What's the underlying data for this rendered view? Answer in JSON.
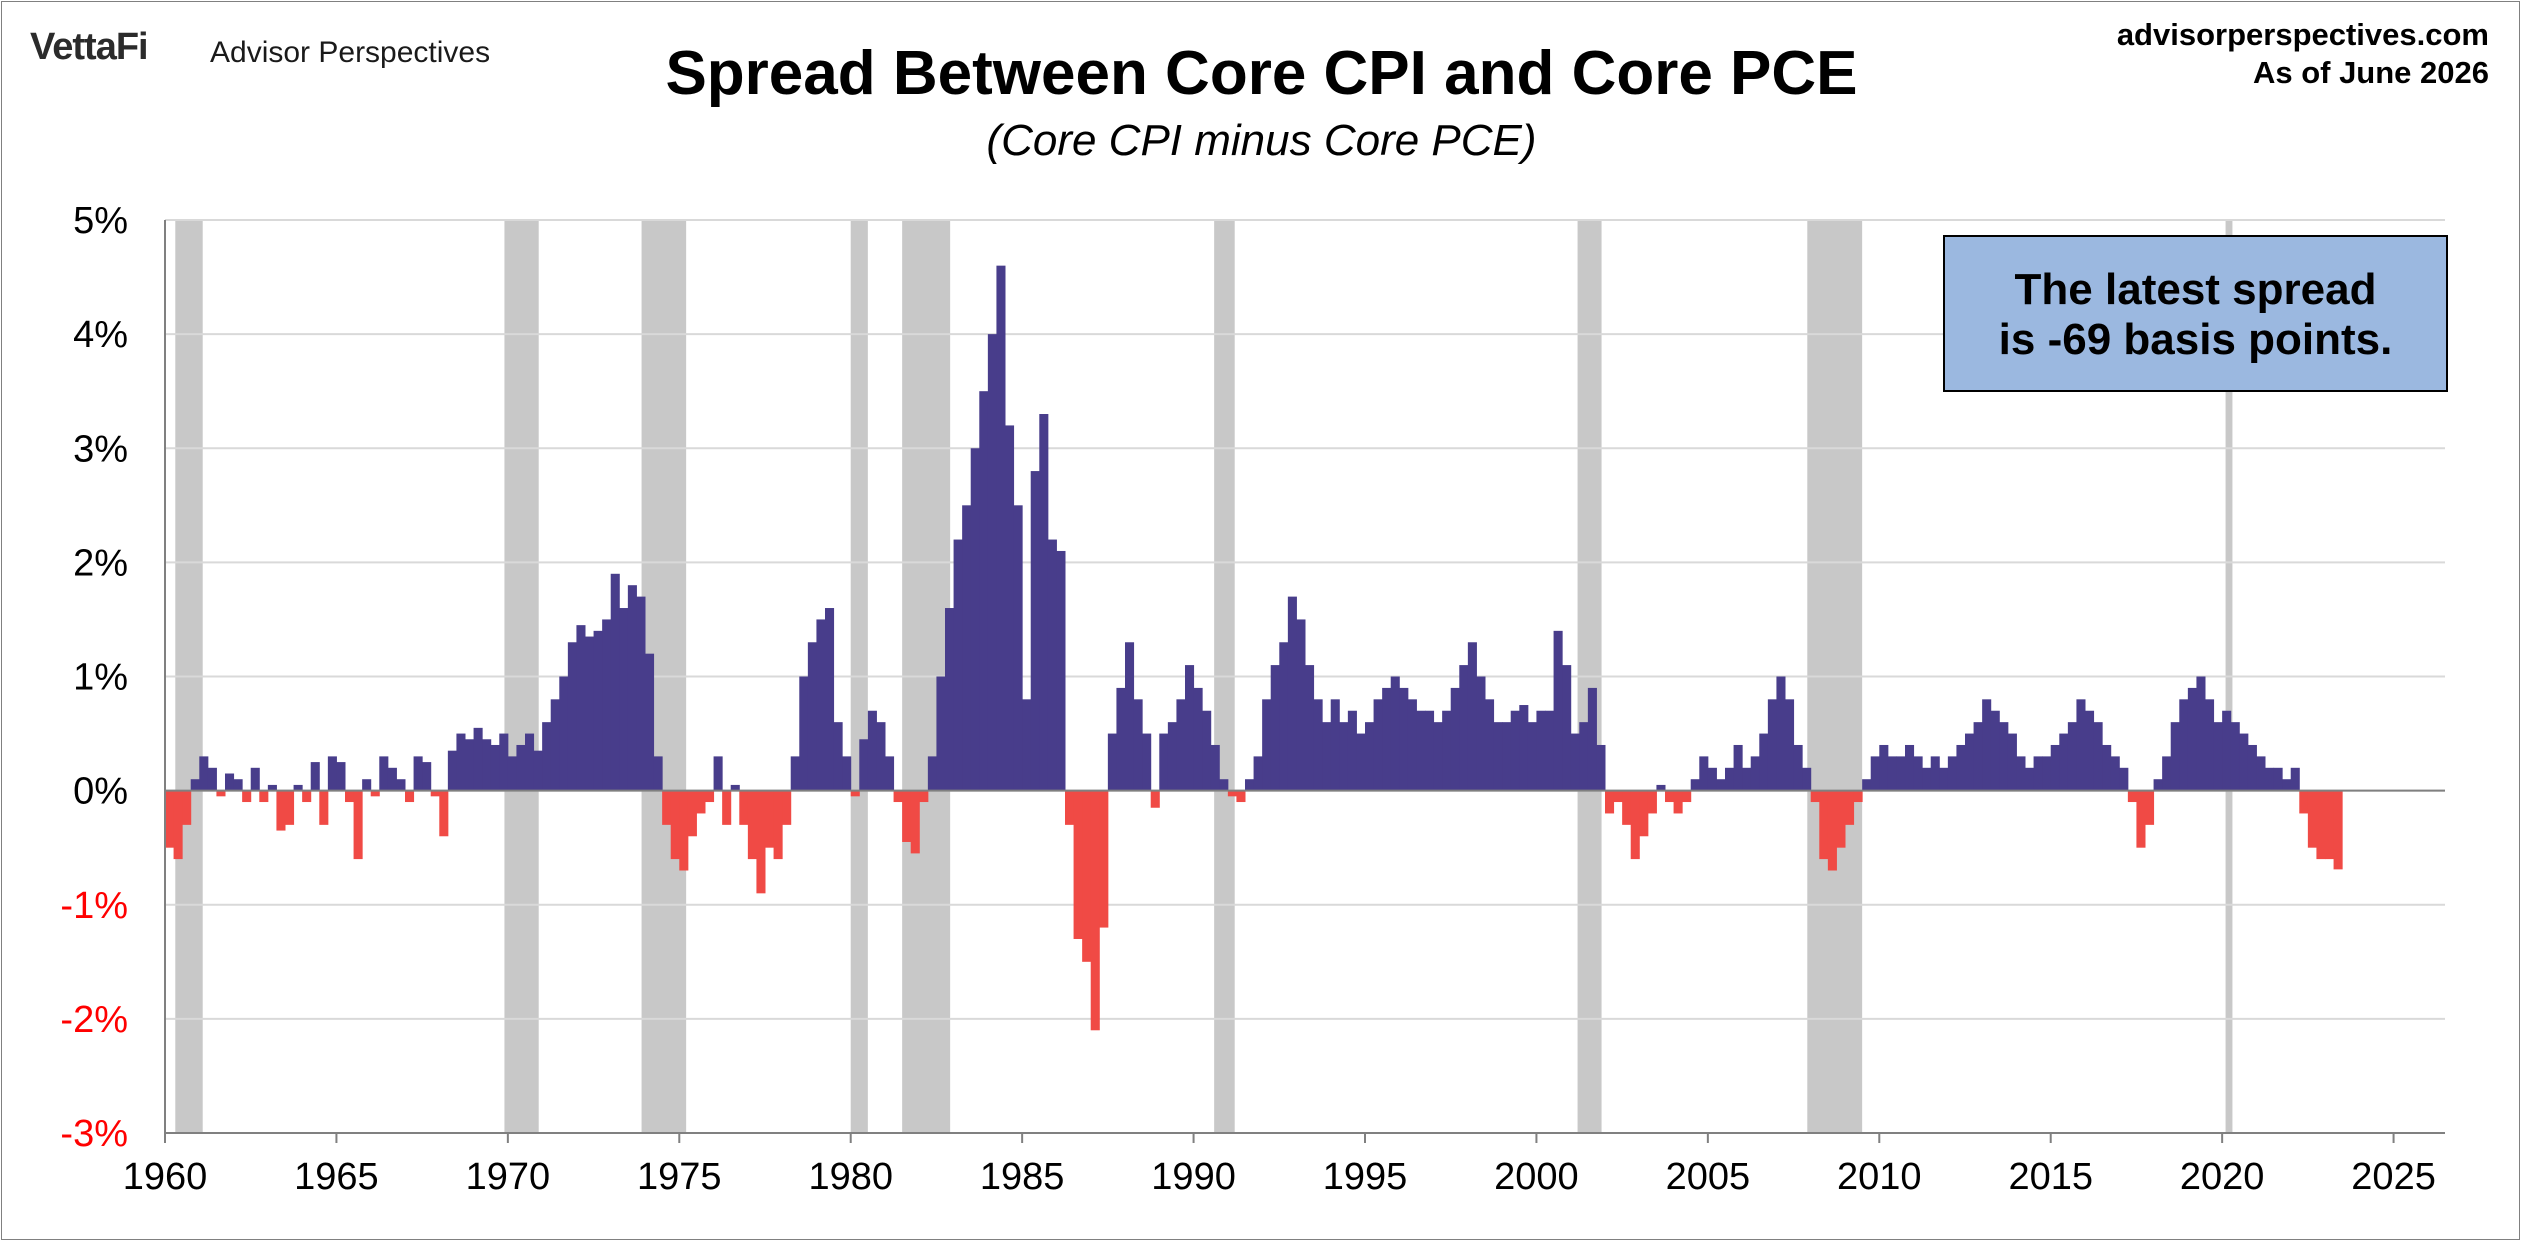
{
  "header": {
    "logo_text": "VettaFi",
    "brand_text": "Advisor Perspectives",
    "site": "advisorperspectives.com",
    "as_of": "As of June 2026"
  },
  "annotation": {
    "line1": "The latest spread",
    "line2": "is -69 basis points."
  },
  "colors": {
    "positive": "#483d8b",
    "negative": "#f04a45",
    "recession": "#c8c8c8",
    "grid": "#d9d9d9",
    "axis_label": "#000000",
    "negative_label": "#ff0000",
    "note_bg": "#9bb8e0"
  },
  "chart_data": {
    "type": "bar",
    "title": "Spread Between Core CPI and Core PCE",
    "subtitle": "(Core CPI minus Core PCE)",
    "xlabel": "",
    "ylabel": "",
    "xlim": [
      1960,
      2026.5
    ],
    "ylim": [
      -3,
      5
    ],
    "y_ticks": [
      5,
      4,
      3,
      2,
      1,
      0,
      -1,
      -2,
      -3
    ],
    "y_tick_labels": [
      "5%",
      "4%",
      "3%",
      "2%",
      "1%",
      "0%",
      "-1%",
      "-2%",
      "-3%"
    ],
    "x_ticks": [
      1960,
      1965,
      1970,
      1975,
      1980,
      1985,
      1990,
      1995,
      2000,
      2005,
      2010,
      2015,
      2020,
      2025
    ],
    "x_tick_labels": [
      "1960",
      "1965",
      "1970",
      "1975",
      "1980",
      "1985",
      "1990",
      "1995",
      "2000",
      "2005",
      "2010",
      "2015",
      "2020",
      "2025"
    ],
    "grid": true,
    "recessions": [
      [
        1960.3,
        1961.1
      ],
      [
        1969.9,
        1970.9
      ],
      [
        1973.9,
        1975.2
      ],
      [
        1980.0,
        1980.5
      ],
      [
        1981.5,
        1982.9
      ],
      [
        1990.6,
        1991.2
      ],
      [
        2001.2,
        2001.9
      ],
      [
        2007.9,
        2009.5
      ],
      [
        2020.1,
        2020.3
      ]
    ],
    "series": [
      {
        "unit": "percent",
        "points": [
          [
            1960.0,
            -0.5
          ],
          [
            1960.25,
            -0.6
          ],
          [
            1960.5,
            -0.3
          ],
          [
            1960.75,
            0.1
          ],
          [
            1961.0,
            0.3
          ],
          [
            1961.25,
            0.2
          ],
          [
            1961.5,
            -0.05
          ],
          [
            1961.75,
            0.15
          ],
          [
            1962.0,
            0.1
          ],
          [
            1962.25,
            -0.1
          ],
          [
            1962.5,
            0.2
          ],
          [
            1962.75,
            -0.1
          ],
          [
            1963.0,
            0.05
          ],
          [
            1963.25,
            -0.35
          ],
          [
            1963.5,
            -0.3
          ],
          [
            1963.75,
            0.05
          ],
          [
            1964.0,
            -0.1
          ],
          [
            1964.25,
            0.25
          ],
          [
            1964.5,
            -0.3
          ],
          [
            1964.75,
            0.3
          ],
          [
            1965.0,
            0.25
          ],
          [
            1965.25,
            -0.1
          ],
          [
            1965.5,
            -0.6
          ],
          [
            1965.75,
            0.1
          ],
          [
            1966.0,
            -0.05
          ],
          [
            1966.25,
            0.3
          ],
          [
            1966.5,
            0.2
          ],
          [
            1966.75,
            0.1
          ],
          [
            1967.0,
            -0.1
          ],
          [
            1967.25,
            0.3
          ],
          [
            1967.5,
            0.25
          ],
          [
            1967.75,
            -0.05
          ],
          [
            1968.0,
            -0.4
          ],
          [
            1968.25,
            0.35
          ],
          [
            1968.5,
            0.5
          ],
          [
            1968.75,
            0.45
          ],
          [
            1969.0,
            0.55
          ],
          [
            1969.25,
            0.45
          ],
          [
            1969.5,
            0.4
          ],
          [
            1969.75,
            0.5
          ],
          [
            1970.0,
            0.3
          ],
          [
            1970.25,
            0.4
          ],
          [
            1970.5,
            0.5
          ],
          [
            1970.75,
            0.35
          ],
          [
            1971.0,
            0.6
          ],
          [
            1971.25,
            0.8
          ],
          [
            1971.5,
            1.0
          ],
          [
            1971.75,
            1.3
          ],
          [
            1972.0,
            1.45
          ],
          [
            1972.25,
            1.35
          ],
          [
            1972.5,
            1.4
          ],
          [
            1972.75,
            1.5
          ],
          [
            1973.0,
            1.9
          ],
          [
            1973.25,
            1.6
          ],
          [
            1973.5,
            1.8
          ],
          [
            1973.75,
            1.7
          ],
          [
            1974.0,
            1.2
          ],
          [
            1974.25,
            0.3
          ],
          [
            1974.5,
            -0.3
          ],
          [
            1974.75,
            -0.6
          ],
          [
            1975.0,
            -0.7
          ],
          [
            1975.25,
            -0.4
          ],
          [
            1975.5,
            -0.2
          ],
          [
            1975.75,
            -0.1
          ],
          [
            1976.0,
            0.3
          ],
          [
            1976.25,
            -0.3
          ],
          [
            1976.5,
            0.05
          ],
          [
            1976.75,
            -0.3
          ],
          [
            1977.0,
            -0.6
          ],
          [
            1977.25,
            -0.9
          ],
          [
            1977.5,
            -0.5
          ],
          [
            1977.75,
            -0.6
          ],
          [
            1978.0,
            -0.3
          ],
          [
            1978.25,
            0.3
          ],
          [
            1978.5,
            1.0
          ],
          [
            1978.75,
            1.3
          ],
          [
            1979.0,
            1.5
          ],
          [
            1979.25,
            1.6
          ],
          [
            1979.5,
            0.6
          ],
          [
            1979.75,
            0.3
          ],
          [
            1980.0,
            -0.05
          ],
          [
            1980.25,
            0.45
          ],
          [
            1980.5,
            0.7
          ],
          [
            1980.75,
            0.6
          ],
          [
            1981.0,
            0.3
          ],
          [
            1981.25,
            -0.1
          ],
          [
            1981.5,
            -0.45
          ],
          [
            1981.75,
            -0.55
          ],
          [
            1982.0,
            -0.1
          ],
          [
            1982.25,
            0.3
          ],
          [
            1982.5,
            1.0
          ],
          [
            1982.75,
            1.6
          ],
          [
            1983.0,
            2.2
          ],
          [
            1983.25,
            2.5
          ],
          [
            1983.5,
            3.0
          ],
          [
            1983.75,
            3.5
          ],
          [
            1984.0,
            4.0
          ],
          [
            1984.25,
            4.6
          ],
          [
            1984.5,
            3.2
          ],
          [
            1984.75,
            2.5
          ],
          [
            1985.0,
            0.8
          ],
          [
            1985.25,
            2.8
          ],
          [
            1985.5,
            3.3
          ],
          [
            1985.75,
            2.2
          ],
          [
            1986.0,
            2.1
          ],
          [
            1986.25,
            -0.3
          ],
          [
            1986.5,
            -1.3
          ],
          [
            1986.75,
            -1.5
          ],
          [
            1987.0,
            -2.1
          ],
          [
            1987.25,
            -1.2
          ],
          [
            1987.5,
            0.5
          ],
          [
            1987.75,
            0.9
          ],
          [
            1988.0,
            1.3
          ],
          [
            1988.25,
            0.8
          ],
          [
            1988.5,
            0.5
          ],
          [
            1988.75,
            -0.15
          ],
          [
            1989.0,
            0.5
          ],
          [
            1989.25,
            0.6
          ],
          [
            1989.5,
            0.8
          ],
          [
            1989.75,
            1.1
          ],
          [
            1990.0,
            0.9
          ],
          [
            1990.25,
            0.7
          ],
          [
            1990.5,
            0.4
          ],
          [
            1990.75,
            0.1
          ],
          [
            1991.0,
            -0.05
          ],
          [
            1991.25,
            -0.1
          ],
          [
            1991.5,
            0.1
          ],
          [
            1991.75,
            0.3
          ],
          [
            1992.0,
            0.8
          ],
          [
            1992.25,
            1.1
          ],
          [
            1992.5,
            1.3
          ],
          [
            1992.75,
            1.7
          ],
          [
            1993.0,
            1.5
          ],
          [
            1993.25,
            1.1
          ],
          [
            1993.5,
            0.8
          ],
          [
            1993.75,
            0.6
          ],
          [
            1994.0,
            0.8
          ],
          [
            1994.25,
            0.6
          ],
          [
            1994.5,
            0.7
          ],
          [
            1994.75,
            0.5
          ],
          [
            1995.0,
            0.6
          ],
          [
            1995.25,
            0.8
          ],
          [
            1995.5,
            0.9
          ],
          [
            1995.75,
            1.0
          ],
          [
            1996.0,
            0.9
          ],
          [
            1996.25,
            0.8
          ],
          [
            1996.5,
            0.7
          ],
          [
            1996.75,
            0.7
          ],
          [
            1997.0,
            0.6
          ],
          [
            1997.25,
            0.7
          ],
          [
            1997.5,
            0.9
          ],
          [
            1997.75,
            1.1
          ],
          [
            1998.0,
            1.3
          ],
          [
            1998.25,
            1.0
          ],
          [
            1998.5,
            0.8
          ],
          [
            1998.75,
            0.6
          ],
          [
            1999.0,
            0.6
          ],
          [
            1999.25,
            0.7
          ],
          [
            1999.5,
            0.75
          ],
          [
            1999.75,
            0.6
          ],
          [
            2000.0,
            0.7
          ],
          [
            2000.25,
            0.7
          ],
          [
            2000.5,
            1.4
          ],
          [
            2000.75,
            1.1
          ],
          [
            2001.0,
            0.5
          ],
          [
            2001.25,
            0.6
          ],
          [
            2001.5,
            0.9
          ],
          [
            2001.75,
            0.4
          ],
          [
            2002.0,
            -0.2
          ],
          [
            2002.25,
            -0.1
          ],
          [
            2002.5,
            -0.3
          ],
          [
            2002.75,
            -0.6
          ],
          [
            2003.0,
            -0.4
          ],
          [
            2003.25,
            -0.2
          ],
          [
            2003.5,
            0.05
          ],
          [
            2003.75,
            -0.1
          ],
          [
            2004.0,
            -0.2
          ],
          [
            2004.25,
            -0.1
          ],
          [
            2004.5,
            0.1
          ],
          [
            2004.75,
            0.3
          ],
          [
            2005.0,
            0.2
          ],
          [
            2005.25,
            0.1
          ],
          [
            2005.5,
            0.2
          ],
          [
            2005.75,
            0.4
          ],
          [
            2006.0,
            0.2
          ],
          [
            2006.25,
            0.3
          ],
          [
            2006.5,
            0.5
          ],
          [
            2006.75,
            0.8
          ],
          [
            2007.0,
            1.0
          ],
          [
            2007.25,
            0.8
          ],
          [
            2007.5,
            0.4
          ],
          [
            2007.75,
            0.2
          ],
          [
            2008.0,
            -0.1
          ],
          [
            2008.25,
            -0.6
          ],
          [
            2008.5,
            -0.7
          ],
          [
            2008.75,
            -0.5
          ],
          [
            2009.0,
            -0.3
          ],
          [
            2009.25,
            -0.1
          ],
          [
            2009.5,
            0.1
          ],
          [
            2009.75,
            0.3
          ],
          [
            2010.0,
            0.4
          ],
          [
            2010.25,
            0.3
          ],
          [
            2010.5,
            0.3
          ],
          [
            2010.75,
            0.4
          ],
          [
            2011.0,
            0.3
          ],
          [
            2011.25,
            0.2
          ],
          [
            2011.5,
            0.3
          ],
          [
            2011.75,
            0.2
          ],
          [
            2012.0,
            0.3
          ],
          [
            2012.25,
            0.4
          ],
          [
            2012.5,
            0.5
          ],
          [
            2012.75,
            0.6
          ],
          [
            2013.0,
            0.8
          ],
          [
            2013.25,
            0.7
          ],
          [
            2013.5,
            0.6
          ],
          [
            2013.75,
            0.5
          ],
          [
            2014.0,
            0.3
          ],
          [
            2014.25,
            0.2
          ],
          [
            2014.5,
            0.3
          ],
          [
            2014.75,
            0.3
          ],
          [
            2015.0,
            0.4
          ],
          [
            2015.25,
            0.5
          ],
          [
            2015.5,
            0.6
          ],
          [
            2015.75,
            0.8
          ],
          [
            2016.0,
            0.7
          ],
          [
            2016.25,
            0.6
          ],
          [
            2016.5,
            0.4
          ],
          [
            2016.75,
            0.3
          ],
          [
            2017.0,
            0.2
          ],
          [
            2017.25,
            -0.1
          ],
          [
            2017.5,
            -0.5
          ],
          [
            2017.75,
            -0.3
          ],
          [
            2018.0,
            0.1
          ],
          [
            2018.25,
            0.3
          ],
          [
            2018.5,
            0.6
          ],
          [
            2018.75,
            0.8
          ],
          [
            2019.0,
            0.9
          ],
          [
            2019.25,
            1.0
          ],
          [
            2019.5,
            0.8
          ],
          [
            2019.75,
            0.6
          ],
          [
            2020.0,
            0.7
          ],
          [
            2020.25,
            0.6
          ],
          [
            2020.5,
            0.5
          ],
          [
            2020.75,
            0.4
          ],
          [
            2021.0,
            0.3
          ],
          [
            2021.25,
            0.2
          ],
          [
            2021.5,
            0.2
          ],
          [
            2021.75,
            0.1
          ],
          [
            2022.0,
            0.2
          ],
          [
            2022.25,
            -0.2
          ],
          [
            2022.5,
            -0.5
          ],
          [
            2022.75,
            -0.6
          ],
          [
            2023.0,
            -0.6
          ],
          [
            2023.25,
            -0.69
          ]
        ]
      }
    ]
  }
}
